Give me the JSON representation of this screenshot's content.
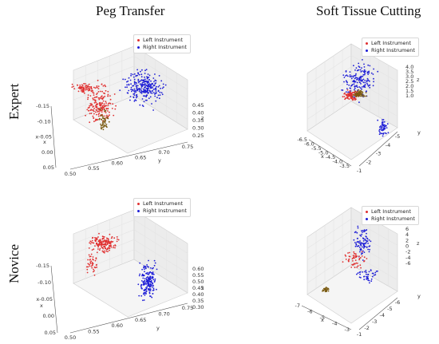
{
  "columns": [
    "Peg Transfer",
    "Soft Tissue Cutting"
  ],
  "rows": [
    "Expert",
    "Novice"
  ],
  "colors": {
    "left": "#e03030",
    "right": "#1d1dd6",
    "trunk": "#7a5a10"
  },
  "chart_data": [
    {
      "type": "scatter",
      "projection": "3d",
      "column": "Peg Transfer",
      "row": "Expert",
      "legend": [
        "Left Instrument",
        "Right Instrument"
      ],
      "legend_position": "top-right",
      "grid": true,
      "xlabel": "x",
      "ylabel": "y",
      "zlabel": "z",
      "xticks": [
        "-0.15",
        "-0.10",
        "x-0.05",
        "0.00",
        "0.05"
      ],
      "yticks": [
        "0.50",
        "0.55",
        "0.60",
        "0.65",
        "0.70",
        "0.75"
      ],
      "zticks": [
        "0.25",
        "0.30",
        "0.35",
        "0.40",
        "0.45"
      ],
      "xlim": [
        -0.15,
        0.05
      ],
      "ylim": [
        0.5,
        0.75
      ],
      "zlim": [
        0.25,
        0.45
      ]
    },
    {
      "type": "scatter",
      "projection": "3d",
      "column": "Soft Tissue Cutting",
      "row": "Expert",
      "legend": [
        "Left Instrument",
        "Right Instrument"
      ],
      "legend_position": "top-right",
      "grid": true,
      "xlabel": "x",
      "ylabel": "y",
      "zlabel": "z",
      "xticks": [
        "-6.5",
        "-6.0",
        "-5.5",
        "-5.0",
        "-4.5",
        "-4.0",
        "-3.5"
      ],
      "yticks": [
        "-1",
        "-2",
        "-3",
        "-4",
        "-5"
      ],
      "zticks": [
        "1.0",
        "1.5",
        "2.0",
        "2.5",
        "3.0",
        "3.5",
        "4.0"
      ],
      "xlim": [
        -6.5,
        -3.5
      ],
      "ylim": [
        -5,
        -1
      ],
      "zlim": [
        1.0,
        4.0
      ]
    },
    {
      "type": "scatter",
      "projection": "3d",
      "column": "Peg Transfer",
      "row": "Novice",
      "legend": [
        "Left Instrument",
        "Right Instrument"
      ],
      "legend_position": "top-right",
      "grid": true,
      "xlabel": "x",
      "ylabel": "y",
      "zlabel": "z",
      "xticks": [
        "-0.15",
        "-0.10",
        "x-0.05",
        "0.00",
        "0.05"
      ],
      "yticks": [
        "0.50",
        "0.55",
        "0.60",
        "0.65",
        "0.70",
        "0.75"
      ],
      "zticks": [
        "0.30",
        "0.35",
        "0.40",
        "0.45",
        "0.50",
        "0.55",
        "0.60"
      ],
      "xlim": [
        -0.15,
        0.05
      ],
      "ylim": [
        0.5,
        0.75
      ],
      "zlim": [
        0.3,
        0.6
      ]
    },
    {
      "type": "scatter",
      "projection": "3d",
      "column": "Soft Tissue Cutting",
      "row": "Novice",
      "legend": [
        "Left Instrument",
        "Right Instrument"
      ],
      "legend_position": "top-right",
      "grid": true,
      "xlabel": "x",
      "ylabel": "y",
      "zlabel": "z",
      "xticks": [
        "-7",
        "-6",
        "-5",
        "-4",
        "-3"
      ],
      "yticks": [
        "-1",
        "-2",
        "-3",
        "-4",
        "-5",
        "-6"
      ],
      "zticks": [
        "-6",
        "-4",
        "-2",
        "0",
        "2",
        "4",
        "6"
      ],
      "xlim": [
        -7,
        -3
      ],
      "ylim": [
        -6,
        -1
      ],
      "zlim": [
        -6,
        6
      ]
    }
  ]
}
